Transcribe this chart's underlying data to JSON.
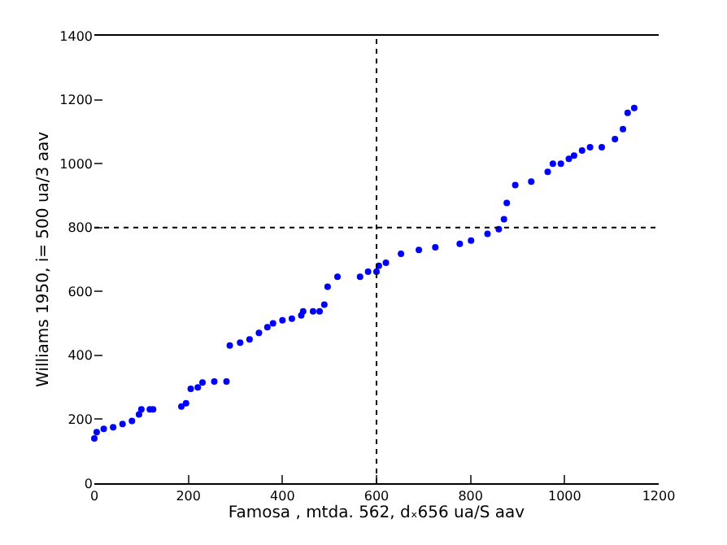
{
  "chart_data": {
    "type": "scatter",
    "xlabel": "Famosa , mtda. 562, dₓ656 ua/S aav",
    "ylabel": "Williams 1950, i= 500 ua/3 aav",
    "x": [
      0,
      5,
      20,
      40,
      60,
      80,
      95,
      100,
      118,
      125,
      185,
      195,
      205,
      220,
      230,
      255,
      281,
      288,
      310,
      330,
      350,
      368,
      380,
      400,
      420,
      440,
      444,
      465,
      479,
      489,
      496,
      517,
      565,
      582,
      600,
      605,
      620,
      652,
      690,
      725,
      777,
      801,
      836,
      860,
      871,
      877,
      895,
      929,
      964,
      975,
      992,
      1009,
      1020,
      1037,
      1054,
      1079,
      1107,
      1124,
      1134,
      1148
    ],
    "series": [
      {
        "color": "#0000ff",
        "values": [
          140,
          160,
          170,
          175,
          185,
          195,
          215,
          231,
          231,
          231,
          240,
          250,
          295,
          300,
          315,
          318,
          318,
          431,
          440,
          450,
          470,
          488,
          500,
          510,
          515,
          525,
          538,
          538,
          538,
          559,
          615,
          646,
          646,
          662,
          662,
          680,
          690,
          718,
          730,
          738,
          749,
          759,
          780,
          795,
          826,
          877,
          933,
          944,
          974,
          1000,
          1000,
          1015,
          1025,
          1041,
          1051,
          1051,
          1077,
          1108,
          1159,
          1174
        ]
      }
    ],
    "xlim": [
      0,
      1200
    ],
    "ylim": [
      0,
      1400
    ],
    "xticks": [
      0,
      200,
      400,
      600,
      800,
      1000,
      1200
    ],
    "yticks": [
      0,
      200,
      400,
      600,
      800,
      1000,
      1200,
      1400
    ],
    "ref_lines": [
      {
        "axis": "x",
        "value": 600,
        "color": "#000000",
        "line_style": "dotted"
      },
      {
        "axis": "y",
        "value": 800,
        "color": "#000000",
        "line_style": "dotted"
      }
    ],
    "marker": "circle",
    "legend": false
  }
}
